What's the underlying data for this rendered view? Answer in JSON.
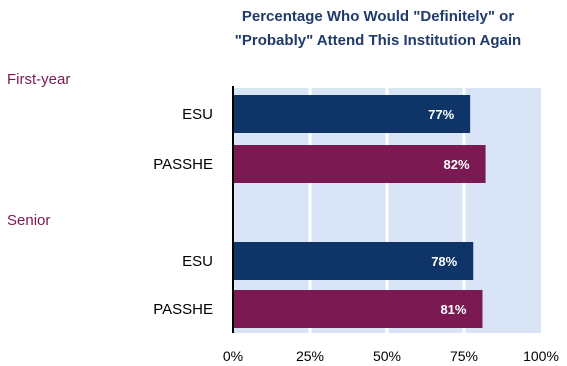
{
  "chart_data": {
    "type": "bar",
    "orientation": "horizontal",
    "title": "Percentage Who Would \"Definitely\" or \"Probably\" Attend This Institution Again",
    "title_lines": [
      "Percentage Who Would \"Definitely\" or",
      "\"Probably\" Attend This Institution Again"
    ],
    "xlim": [
      0,
      100
    ],
    "x_ticks": [
      "0%",
      "25%",
      "50%",
      "75%",
      "100%"
    ],
    "grid": true,
    "groups": [
      {
        "label": "First-year",
        "bars": [
          {
            "category": "ESU",
            "value": 77,
            "label": "77%",
            "color": "#0e3468"
          },
          {
            "category": "PASSHE",
            "value": 82,
            "label": "82%",
            "color": "#7b1a52"
          }
        ]
      },
      {
        "label": "Senior",
        "bars": [
          {
            "category": "ESU",
            "value": 78,
            "label": "78%",
            "color": "#0e3468"
          },
          {
            "category": "PASSHE",
            "value": 81,
            "label": "81%",
            "color": "#7b1a52"
          }
        ]
      }
    ],
    "colors": {
      "plot_background": "#d9e4f7",
      "gridline": "#ffffff",
      "axis": "#000000",
      "title": "#1f3a6b",
      "group_label": "#7a1a52"
    }
  }
}
